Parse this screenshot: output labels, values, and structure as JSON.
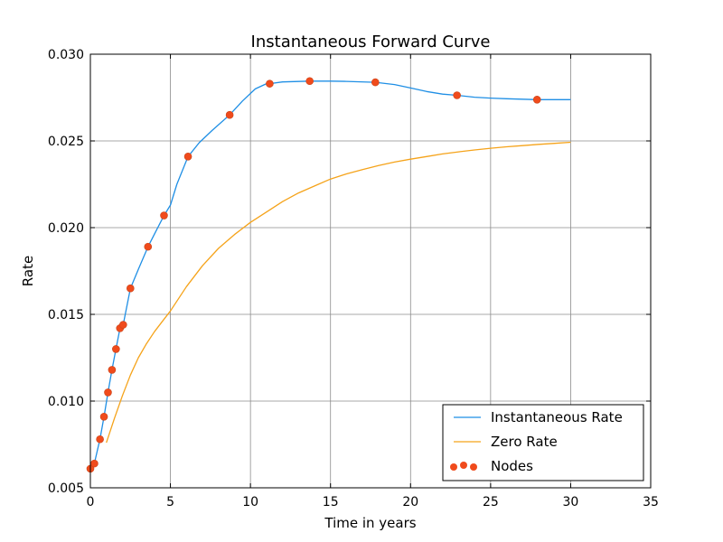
{
  "chart_data": {
    "type": "line",
    "title": "Instantaneous Forward Curve",
    "xlabel": "Time in  years",
    "ylabel": "Rate",
    "xlim": [
      0,
      35
    ],
    "ylim": [
      0.005,
      0.03
    ],
    "x_ticks": [
      0,
      5,
      10,
      15,
      20,
      25,
      30,
      35
    ],
    "x_tick_labels": [
      "0",
      "5",
      "10",
      "15",
      "20",
      "25",
      "30",
      "35"
    ],
    "y_ticks": [
      0.005,
      0.01,
      0.015,
      0.02,
      0.025,
      0.03
    ],
    "y_tick_labels": [
      "0.005",
      "0.010",
      "0.015",
      "0.020",
      "0.025",
      "0.030"
    ],
    "grid": true,
    "legend_position": "bottom-right",
    "series": [
      {
        "name": "Instantaneous Rate",
        "kind": "line",
        "color": "#1f8fe5",
        "x": [
          0,
          0.25,
          0.6,
          0.85,
          1.1,
          1.35,
          1.6,
          1.85,
          2.05,
          2.5,
          3.0,
          3.6,
          4.1,
          4.6,
          5.0,
          5.4,
          6.1,
          6.8,
          7.6,
          8.7,
          9.5,
          10.3,
          11.0,
          11.2,
          12.0,
          13.7,
          15.0,
          16.0,
          17.8,
          19.0,
          20.0,
          21.0,
          22.0,
          22.9,
          24.0,
          25.0,
          26.0,
          27.9,
          29.0,
          30.0
        ],
        "y": [
          0.006,
          0.0064,
          0.0078,
          0.0091,
          0.0105,
          0.0118,
          0.013,
          0.0142,
          0.0144,
          0.0165,
          0.0176,
          0.0189,
          0.0198,
          0.0207,
          0.0213,
          0.0225,
          0.0241,
          0.0249,
          0.0256,
          0.0265,
          0.0273,
          0.028,
          0.0283,
          0.0283,
          0.0284,
          0.02845,
          0.02845,
          0.02843,
          0.02838,
          0.02825,
          0.02805,
          0.02785,
          0.0277,
          0.02763,
          0.02752,
          0.02747,
          0.02743,
          0.02738,
          0.02738,
          0.02738
        ]
      },
      {
        "name": "Zero Rate",
        "kind": "line",
        "color": "#f5a31a",
        "x": [
          1.0,
          1.5,
          2.0,
          2.5,
          3.0,
          3.5,
          4.0,
          4.5,
          5.0,
          6.0,
          7.0,
          8.0,
          9.0,
          10.0,
          11.0,
          12.0,
          13.0,
          14.0,
          15.0,
          16.0,
          17.0,
          18.0,
          19.0,
          20.0,
          21.0,
          22.0,
          23.0,
          24.0,
          25.0,
          26.0,
          27.0,
          28.0,
          29.0,
          30.0
        ],
        "y": [
          0.0076,
          0.009,
          0.0103,
          0.0115,
          0.0125,
          0.0133,
          0.014,
          0.0146,
          0.0152,
          0.0166,
          0.0178,
          0.0188,
          0.0196,
          0.0203,
          0.0209,
          0.0215,
          0.022,
          0.0224,
          0.0228,
          0.0231,
          0.02335,
          0.02358,
          0.02378,
          0.02395,
          0.0241,
          0.02425,
          0.02437,
          0.02448,
          0.02458,
          0.02466,
          0.02473,
          0.0248,
          0.02486,
          0.02492
        ]
      },
      {
        "name": "Nodes",
        "kind": "scatter",
        "color": "#f04b1c",
        "x": [
          0,
          0.25,
          0.6,
          0.85,
          1.1,
          1.35,
          1.6,
          1.85,
          2.05,
          2.5,
          3.6,
          4.6,
          6.1,
          8.7,
          11.2,
          13.7,
          17.8,
          22.9,
          27.9
        ],
        "y": [
          0.0061,
          0.0064,
          0.0078,
          0.0091,
          0.0105,
          0.0118,
          0.013,
          0.0142,
          0.0144,
          0.0165,
          0.0189,
          0.0207,
          0.0241,
          0.0265,
          0.0283,
          0.02845,
          0.02838,
          0.02763,
          0.02738
        ]
      }
    ]
  }
}
